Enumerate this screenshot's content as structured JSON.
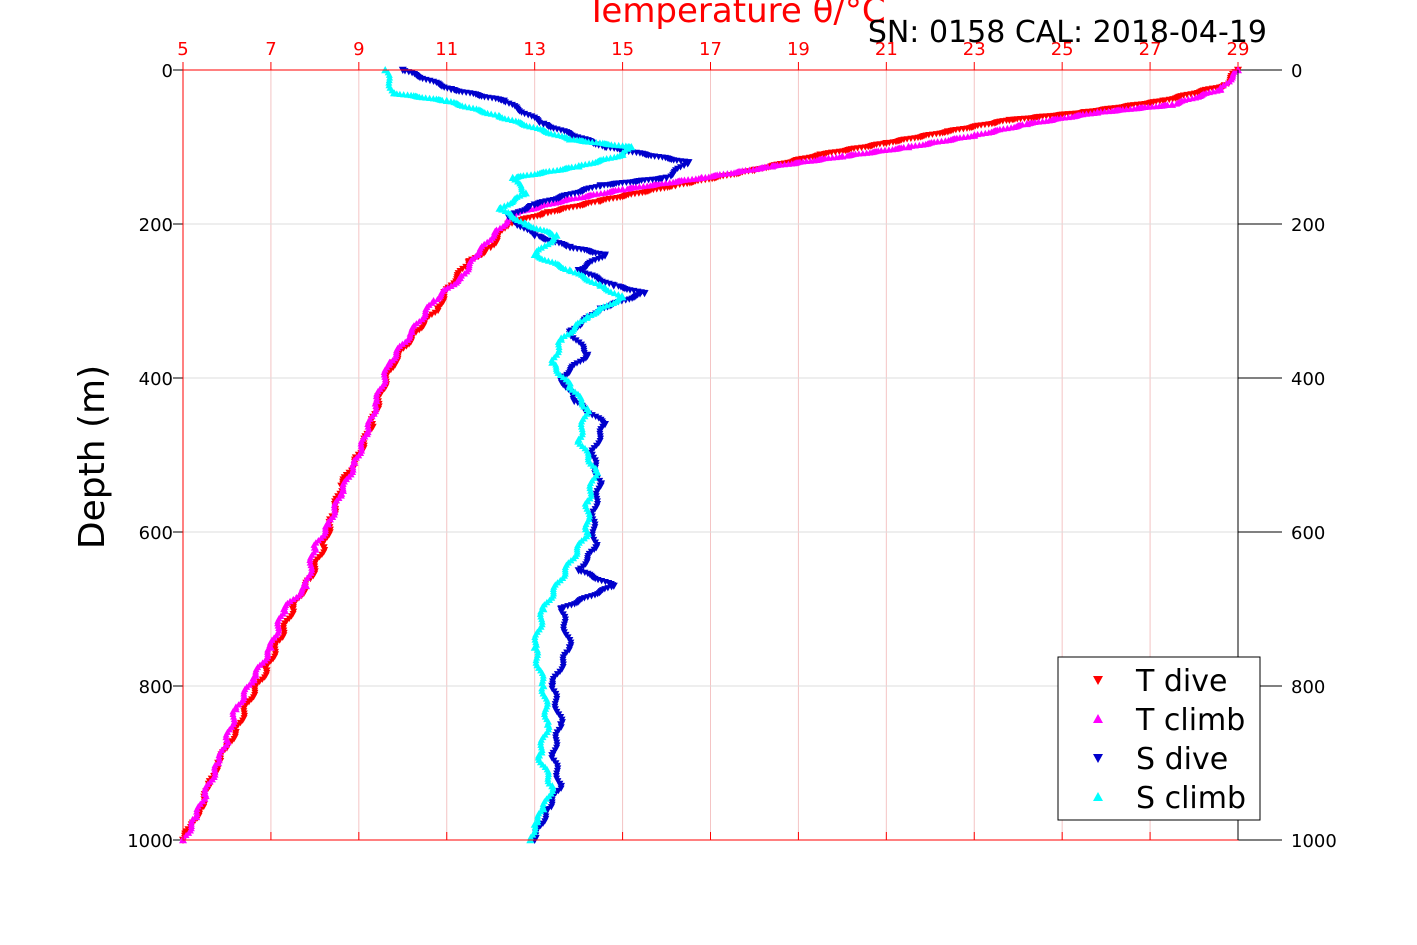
{
  "chart_data": {
    "type": "scatter",
    "title": "Temperature θ/°C",
    "annotation": "SN: 0158  CAL: 2018-04-19",
    "xlabel": "Temperature θ/°C",
    "ylabel": "Depth (m)",
    "xlim": [
      5,
      29
    ],
    "ylim": [
      0,
      1000
    ],
    "y_inverted": true,
    "x_axis_position": "top",
    "x_ticks": [
      "5",
      "7",
      "9",
      "11",
      "13",
      "15",
      "17",
      "19",
      "21",
      "23",
      "25",
      "27",
      "29"
    ],
    "y_ticks": [
      "0",
      "200",
      "400",
      "600",
      "800",
      "1000"
    ],
    "grid": true,
    "legend_position": "bottom-right",
    "colors": {
      "axes": "#ff0000",
      "grid": "#e0e0e0",
      "t_dive": "#ff0000",
      "t_climb": "#ff00ff",
      "s_dive": "#0000cc",
      "s_climb": "#00ffff"
    },
    "series": [
      {
        "name": "T dive",
        "marker": "triangle-down",
        "color": "#ff0000",
        "x": [
          29.0,
          28.7,
          27.3,
          25.5,
          23.8,
          22.4,
          21.0,
          19.5,
          18.0,
          16.2,
          14.5,
          13.3,
          12.4,
          12.0,
          11.5,
          11.0,
          10.8,
          10.3,
          9.8,
          9.5,
          9.3,
          9.0,
          8.6,
          8.4,
          8.2,
          7.9,
          7.5,
          7.2,
          6.9,
          6.5,
          6.2,
          6.0,
          5.8,
          5.6,
          5.4,
          5.2,
          5.0
        ],
        "y": [
          0,
          20,
          40,
          55,
          65,
          80,
          95,
          110,
          130,
          150,
          170,
          185,
          200,
          230,
          250,
          285,
          310,
          340,
          380,
          420,
          460,
          500,
          540,
          580,
          620,
          660,
          700,
          740,
          780,
          820,
          860,
          880,
          900,
          930,
          960,
          980,
          1000
        ]
      },
      {
        "name": "T climb",
        "marker": "triangle-up",
        "color": "#ff00ff",
        "x": [
          29.0,
          28.6,
          27.5,
          25.8,
          24.2,
          23.0,
          21.5,
          20.0,
          18.4,
          16.8,
          15.0,
          13.6,
          12.6,
          12.1,
          11.7,
          11.3,
          10.7,
          10.2,
          9.7,
          9.4,
          9.2,
          8.9,
          8.6,
          8.3,
          8.0,
          7.8,
          7.3,
          7.0,
          6.6,
          6.2,
          6.0,
          5.8,
          5.5,
          5.3,
          5.0
        ],
        "y": [
          0,
          25,
          45,
          55,
          70,
          85,
          100,
          112,
          125,
          140,
          155,
          170,
          185,
          210,
          240,
          270,
          300,
          340,
          380,
          430,
          470,
          510,
          550,
          590,
          620,
          670,
          700,
          750,
          790,
          830,
          870,
          900,
          940,
          970,
          1000
        ]
      },
      {
        "name": "S dive",
        "marker": "triangle-down",
        "color": "#0000cc",
        "x": [
          10.0,
          11.1,
          12.3,
          13.2,
          14.6,
          16.5,
          16.0,
          14.5,
          13.0,
          12.4,
          12.6,
          13.0,
          13.8,
          14.6,
          14.0,
          14.8,
          15.5,
          14.5,
          13.8,
          14.2,
          13.6,
          13.9,
          14.6,
          14.3,
          14.5,
          14.3,
          14.4,
          14.0,
          14.8,
          13.6,
          13.8,
          13.4,
          13.6,
          13.4,
          13.6,
          13.3,
          13.0
        ],
        "y": [
          0,
          25,
          40,
          70,
          100,
          120,
          140,
          150,
          175,
          190,
          200,
          215,
          230,
          240,
          260,
          280,
          290,
          310,
          340,
          370,
          400,
          430,
          460,
          500,
          540,
          580,
          620,
          650,
          670,
          700,
          750,
          800,
          850,
          890,
          930,
          960,
          1000
        ]
      },
      {
        "name": "S climb",
        "marker": "triangle-up",
        "color": "#00ffff",
        "x": [
          9.6,
          9.8,
          11.0,
          12.2,
          13.8,
          15.2,
          15.0,
          14.0,
          12.5,
          12.8,
          12.2,
          12.8,
          13.5,
          13.0,
          13.8,
          14.5,
          15.0,
          14.2,
          13.6,
          13.4,
          13.8,
          14.2,
          14.0,
          14.4,
          14.2,
          14.2,
          13.2,
          13.0,
          13.2,
          13.3,
          13.1,
          13.4,
          13.2,
          13.0,
          12.9
        ],
        "y": [
          0,
          30,
          40,
          60,
          90,
          100,
          110,
          125,
          140,
          160,
          180,
          200,
          215,
          240,
          260,
          280,
          295,
          320,
          350,
          380,
          410,
          440,
          480,
          520,
          560,
          600,
          700,
          750,
          800,
          850,
          890,
          930,
          960,
          980,
          1000
        ]
      }
    ]
  }
}
